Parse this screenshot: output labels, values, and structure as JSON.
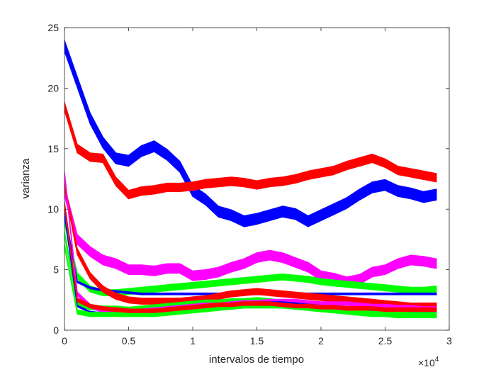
{
  "chart_data": {
    "type": "line",
    "xlabel": "intervalos de tiempo",
    "ylabel": "varianza",
    "xlim": [
      0,
      3
    ],
    "ylim": [
      0,
      25
    ],
    "x_multiplier_label": "×10",
    "x_multiplier_exponent": "4",
    "x_ticks": [
      "0",
      "0.5",
      "1",
      "1.5",
      "2",
      "2.5",
      "3"
    ],
    "y_ticks": [
      "0",
      "5",
      "10",
      "15",
      "20",
      "25"
    ],
    "grid": false,
    "legend": "none",
    "series": [
      {
        "color": "#0000ff",
        "band": 0.9,
        "x": [
          0.0,
          0.1,
          0.2,
          0.3,
          0.4,
          0.5,
          0.6,
          0.7,
          0.8,
          0.9,
          1.0,
          1.1,
          1.2,
          1.3,
          1.4,
          1.5,
          1.6,
          1.7,
          1.8,
          1.9,
          2.0,
          2.1,
          2.2,
          2.3,
          2.4,
          2.5,
          2.6,
          2.7,
          2.8,
          2.9
        ],
        "y": [
          23.5,
          20.5,
          17.5,
          15.5,
          14.2,
          14.0,
          14.8,
          15.2,
          14.5,
          13.5,
          11.5,
          10.8,
          9.8,
          9.5,
          9.0,
          9.2,
          9.5,
          9.8,
          9.6,
          9.0,
          9.5,
          10.0,
          10.5,
          11.2,
          11.8,
          12.0,
          11.5,
          11.3,
          11.0,
          11.2
        ]
      },
      {
        "color": "#ff0000",
        "band": 0.7,
        "x": [
          0.0,
          0.1,
          0.2,
          0.3,
          0.4,
          0.5,
          0.6,
          0.7,
          0.8,
          0.9,
          1.0,
          1.1,
          1.2,
          1.3,
          1.4,
          1.5,
          1.6,
          1.7,
          1.8,
          1.9,
          2.0,
          2.1,
          2.2,
          2.3,
          2.4,
          2.5,
          2.6,
          2.7,
          2.8,
          2.9
        ],
        "y": [
          18.5,
          15.0,
          14.3,
          14.2,
          12.3,
          11.2,
          11.5,
          11.6,
          11.8,
          11.8,
          11.9,
          12.1,
          12.2,
          12.3,
          12.2,
          12.0,
          12.2,
          12.3,
          12.5,
          12.8,
          13.0,
          13.2,
          13.6,
          13.9,
          14.2,
          13.8,
          13.2,
          13.0,
          12.8,
          12.6
        ]
      },
      {
        "color": "#ff00ff",
        "band": 0.8,
        "x": [
          0.0,
          0.1,
          0.2,
          0.3,
          0.4,
          0.5,
          0.6,
          0.7,
          0.8,
          0.9,
          1.0,
          1.1,
          1.2,
          1.3,
          1.4,
          1.5,
          1.6,
          1.7,
          1.8,
          1.9,
          2.0,
          2.1,
          2.2,
          2.3,
          2.4,
          2.5,
          2.6,
          2.7,
          2.8,
          2.9
        ],
        "y": [
          11.5,
          7.5,
          6.5,
          5.8,
          5.5,
          5.0,
          5.0,
          4.9,
          5.1,
          5.1,
          4.5,
          4.6,
          4.8,
          5.2,
          5.5,
          6.0,
          6.2,
          6.0,
          5.6,
          5.2,
          4.5,
          4.3,
          4.0,
          4.2,
          4.8,
          5.0,
          5.5,
          5.8,
          5.7,
          5.5
        ]
      },
      {
        "color": "#00ff00",
        "band": 0.5,
        "x": [
          0.0,
          0.1,
          0.2,
          0.3,
          0.4,
          0.5,
          0.6,
          0.7,
          0.8,
          0.9,
          1.0,
          1.1,
          1.2,
          1.3,
          1.4,
          1.5,
          1.6,
          1.7,
          1.8,
          1.9,
          2.0,
          2.1,
          2.2,
          2.3,
          2.4,
          2.5,
          2.6,
          2.7,
          2.8,
          2.9
        ],
        "y": [
          9.0,
          4.5,
          3.4,
          3.1,
          3.1,
          3.2,
          3.3,
          3.4,
          3.5,
          3.6,
          3.7,
          3.8,
          3.9,
          4.0,
          4.1,
          4.2,
          4.3,
          4.4,
          4.3,
          4.2,
          4.0,
          3.9,
          3.8,
          3.7,
          3.6,
          3.5,
          3.4,
          3.3,
          3.3,
          3.4
        ]
      },
      {
        "color": "#0000ff",
        "band": 0.15,
        "x": [
          0.0,
          0.1,
          0.2,
          0.3,
          0.4,
          0.5,
          0.6,
          0.7,
          0.8,
          0.9,
          1.0,
          1.1,
          1.2,
          1.3,
          1.4,
          1.5,
          1.6,
          1.7,
          1.8,
          1.9,
          2.0,
          2.1,
          2.2,
          2.3,
          2.4,
          2.5,
          2.6,
          2.7,
          2.8,
          2.9
        ],
        "y": [
          10.0,
          4.0,
          3.5,
          3.3,
          3.2,
          3.1,
          3.0,
          3.0,
          3.0,
          3.0,
          3.0,
          3.0,
          3.0,
          3.0,
          3.0,
          3.0,
          3.0,
          3.0,
          3.0,
          3.0,
          3.0,
          3.0,
          3.0,
          3.0,
          3.0,
          3.0,
          3.0,
          3.0,
          3.0,
          3.0
        ]
      },
      {
        "color": "#ff0000",
        "band": 0.5,
        "x": [
          0.0,
          0.1,
          0.2,
          0.3,
          0.4,
          0.5,
          0.6,
          0.7,
          0.8,
          0.9,
          1.0,
          1.1,
          1.2,
          1.3,
          1.4,
          1.5,
          1.6,
          1.7,
          1.8,
          1.9,
          2.0,
          2.1,
          2.2,
          2.3,
          2.4,
          2.5,
          2.6,
          2.7,
          2.8,
          2.9
        ],
        "y": [
          12.0,
          6.5,
          4.5,
          3.4,
          2.8,
          2.5,
          2.4,
          2.4,
          2.4,
          2.4,
          2.5,
          2.6,
          2.8,
          3.0,
          3.1,
          3.2,
          3.1,
          3.0,
          2.9,
          2.8,
          2.7,
          2.6,
          2.5,
          2.4,
          2.3,
          2.2,
          2.1,
          2.0,
          2.0,
          2.0
        ]
      },
      {
        "color": "#00ff00",
        "band": 0.4,
        "x": [
          0.0,
          0.1,
          0.2,
          0.3,
          0.4,
          0.5,
          0.6,
          0.7,
          0.8,
          0.9,
          1.0,
          1.1,
          1.2,
          1.3,
          1.4,
          1.5,
          1.6,
          1.7,
          1.8,
          1.9,
          2.0,
          2.1,
          2.2,
          2.3,
          2.4,
          2.5,
          2.6,
          2.7,
          2.8,
          2.9
        ],
        "y": [
          8.0,
          2.2,
          1.9,
          1.8,
          1.8,
          1.7,
          1.8,
          1.9,
          2.0,
          2.1,
          2.2,
          2.3,
          2.3,
          2.4,
          2.4,
          2.5,
          2.4,
          2.3,
          2.2,
          2.1,
          2.0,
          1.9,
          1.8,
          1.7,
          1.6,
          1.5,
          1.5,
          1.4,
          1.4,
          1.4
        ]
      },
      {
        "color": "#ff00ff",
        "band": 0.3,
        "x": [
          0.0,
          0.1,
          0.2,
          0.3,
          0.4,
          0.5,
          0.6,
          0.7,
          0.8,
          0.9,
          1.0,
          1.1,
          1.2,
          1.3,
          1.4,
          1.5,
          1.6,
          1.7,
          1.8,
          1.9,
          2.0,
          2.1,
          2.2,
          2.3,
          2.4,
          2.5,
          2.6,
          2.7,
          2.8,
          2.9
        ],
        "y": [
          13.0,
          3.0,
          2.0,
          1.6,
          1.5,
          1.5,
          1.6,
          1.7,
          1.8,
          1.9,
          2.0,
          2.1,
          2.1,
          2.2,
          2.3,
          2.3,
          2.4,
          2.4,
          2.4,
          2.3,
          2.2,
          2.2,
          2.2,
          2.1,
          2.0,
          2.0,
          1.9,
          1.9,
          1.8,
          1.8
        ]
      },
      {
        "color": "#0000ff",
        "band": 0.12,
        "x": [
          0.0,
          0.1,
          0.2,
          0.3,
          0.4,
          0.5,
          0.6,
          0.7,
          0.8,
          0.9,
          1.0,
          1.1,
          1.2,
          1.3,
          1.4,
          1.5,
          1.6,
          1.7,
          1.8,
          1.9,
          2.0,
          2.1,
          2.2,
          2.3,
          2.4,
          2.5,
          2.6,
          2.7,
          2.8,
          2.9
        ],
        "y": [
          9.5,
          2.0,
          1.5,
          1.4,
          1.4,
          1.4,
          1.5,
          1.6,
          1.7,
          1.8,
          1.9,
          2.0,
          2.1,
          2.2,
          2.2,
          2.3,
          2.3,
          2.3,
          2.2,
          2.1,
          2.0,
          1.9,
          1.8,
          1.8,
          1.7,
          1.7,
          1.7,
          1.6,
          1.6,
          1.6
        ]
      },
      {
        "color": "#00ff00",
        "band": 0.35,
        "x": [
          0.0,
          0.1,
          0.2,
          0.3,
          0.4,
          0.5,
          0.6,
          0.7,
          0.8,
          0.9,
          1.0,
          1.1,
          1.2,
          1.3,
          1.4,
          1.5,
          1.6,
          1.7,
          1.8,
          1.9,
          2.0,
          2.1,
          2.2,
          2.3,
          2.4,
          2.5,
          2.6,
          2.7,
          2.8,
          2.9
        ],
        "y": [
          7.0,
          1.5,
          1.3,
          1.3,
          1.3,
          1.3,
          1.3,
          1.3,
          1.4,
          1.5,
          1.6,
          1.7,
          1.8,
          1.9,
          2.0,
          2.0,
          2.0,
          2.0,
          1.9,
          1.8,
          1.7,
          1.6,
          1.5,
          1.4,
          1.3,
          1.3,
          1.2,
          1.2,
          1.2,
          1.2
        ]
      },
      {
        "color": "#ff0000",
        "band": 0.3,
        "x": [
          0.0,
          0.1,
          0.2,
          0.3,
          0.4,
          0.5,
          0.6,
          0.7,
          0.8,
          0.9,
          1.0,
          1.1,
          1.2,
          1.3,
          1.4,
          1.5,
          1.6,
          1.7,
          1.8,
          1.9,
          2.0,
          2.1,
          2.2,
          2.3,
          2.4,
          2.5,
          2.6,
          2.7,
          2.8,
          2.9
        ],
        "y": [
          10.5,
          2.5,
          2.0,
          1.8,
          1.7,
          1.6,
          1.6,
          1.6,
          1.7,
          1.8,
          1.9,
          2.0,
          2.1,
          2.1,
          2.2,
          2.2,
          2.2,
          2.1,
          2.0,
          2.0,
          1.9,
          1.9,
          1.8,
          1.8,
          1.8,
          1.7,
          1.7,
          1.7,
          1.7,
          1.7
        ]
      }
    ]
  }
}
